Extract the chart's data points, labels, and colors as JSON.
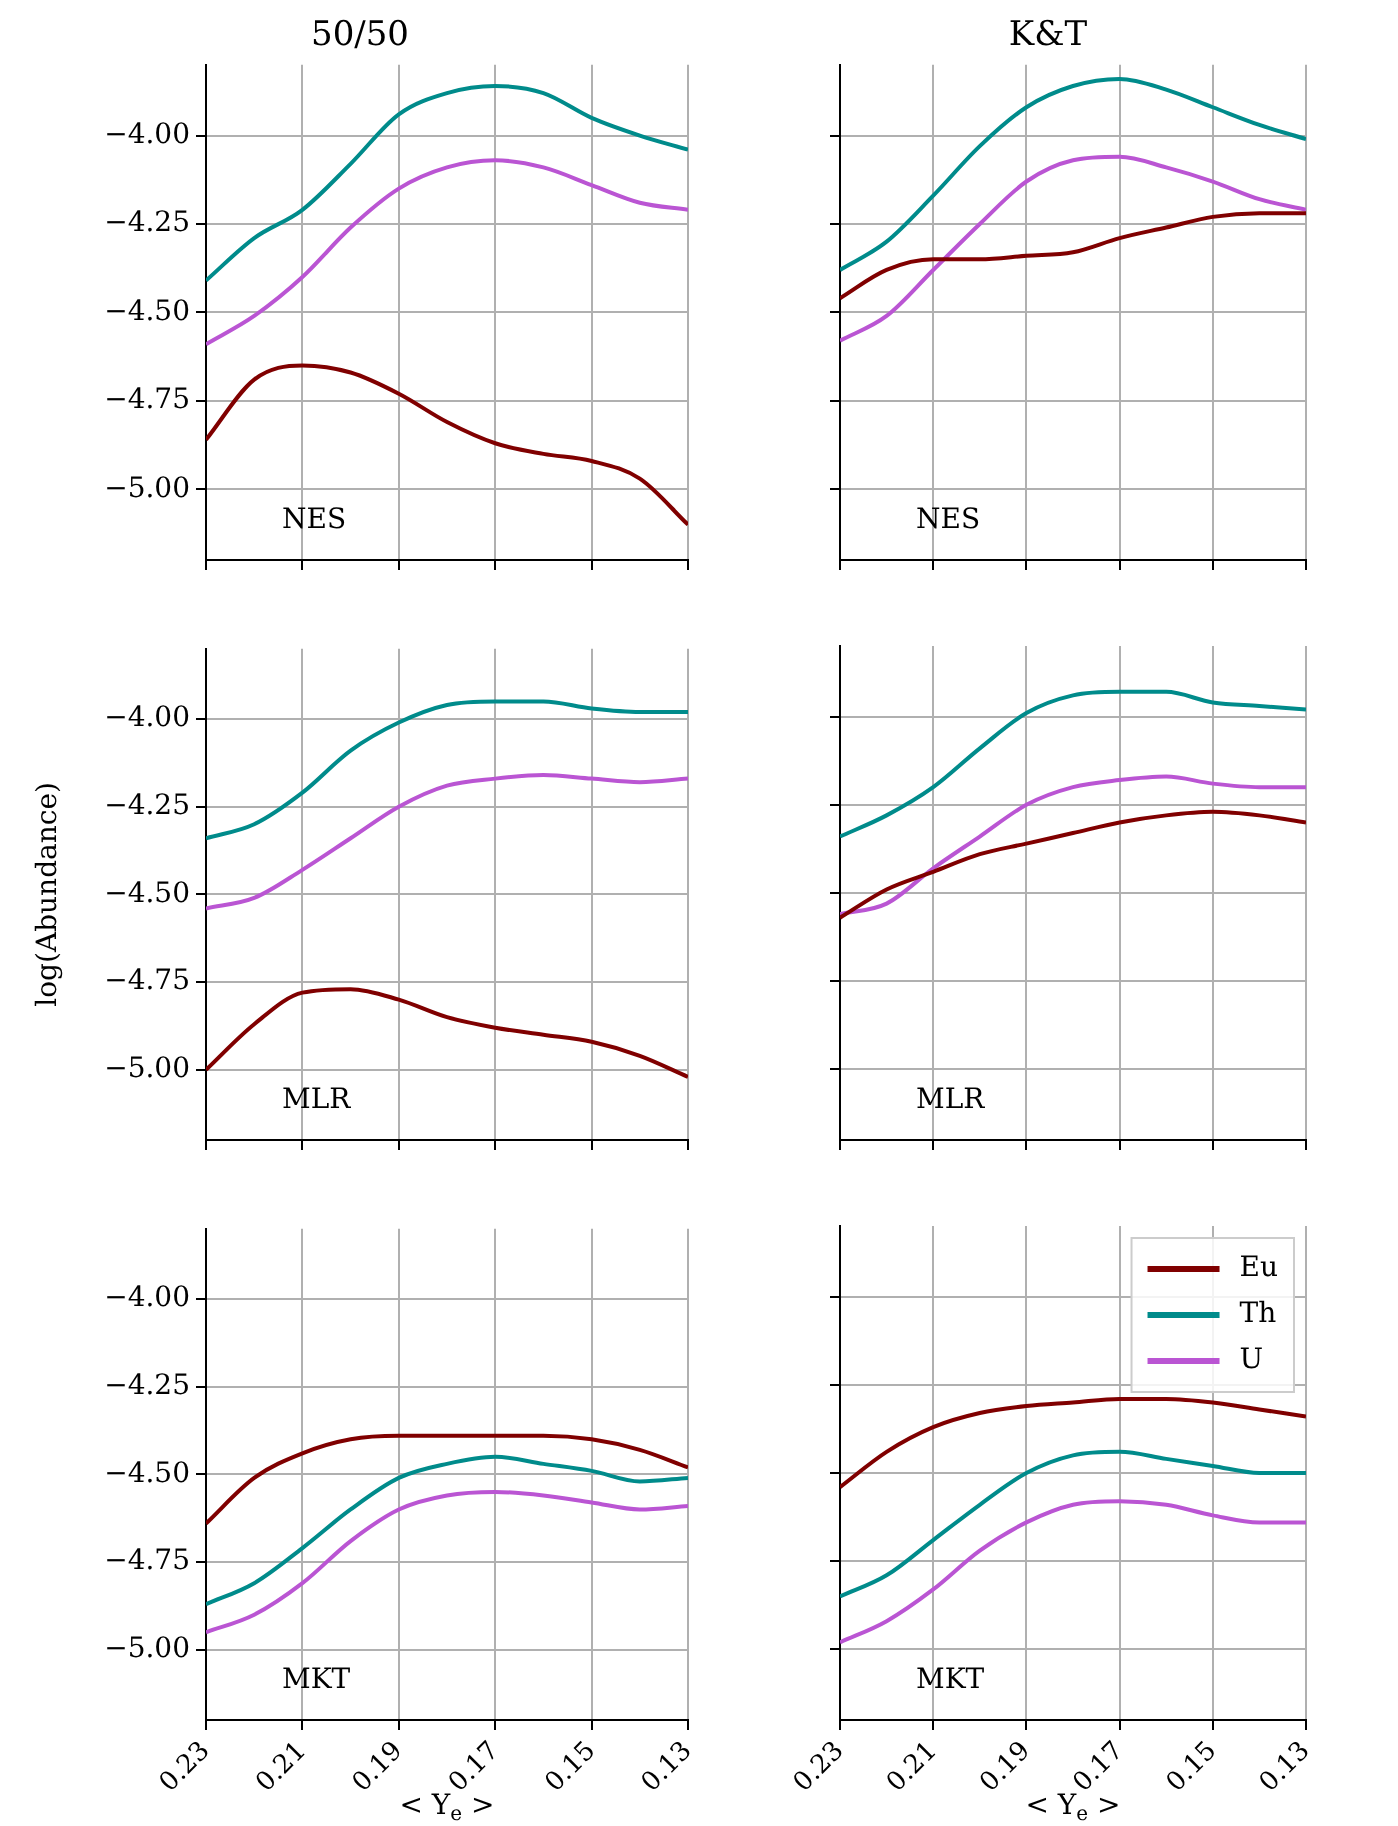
{
  "chart_data": [
    {
      "type": "line",
      "title": "50/50",
      "x": [
        0.23,
        0.22,
        0.21,
        0.2,
        0.19,
        0.18,
        0.17,
        0.16,
        0.15,
        0.14,
        0.13
      ],
      "xlim": [
        0.23,
        0.13
      ],
      "xticks": [
        0.23,
        0.21,
        0.19,
        0.17,
        0.15,
        0.13
      ],
      "ylim": [
        -5.2,
        -3.8
      ],
      "yticks": [
        {
          "value": -5,
          "label": "−5.00"
        },
        {
          "value": -4.75,
          "label": "−4.75"
        },
        {
          "value": -4.5,
          "label": "−4.50"
        },
        {
          "value": -4.25,
          "label": "−4.25"
        },
        {
          "value": -4,
          "label": "−4.00"
        }
      ],
      "grid": true,
      "line_style": "solid",
      "marker": "none",
      "legend": false,
      "tick_labels": "y",
      "annotations": [
        "NES"
      ],
      "series": [
        {
          "color": "#800000",
          "values": [
            -4.86,
            -4.69,
            -4.65,
            -4.67,
            -4.73,
            -4.81,
            -4.87,
            -4.9,
            -4.92,
            -4.97,
            -5.1
          ]
        },
        {
          "color": "#008b8b",
          "values": [
            -4.41,
            -4.29,
            -4.21,
            -4.08,
            -3.94,
            -3.88,
            -3.86,
            -3.88,
            -3.95,
            -4.0,
            -4.04
          ]
        },
        {
          "color": "#ba55d3",
          "values": [
            -4.59,
            -4.51,
            -4.4,
            -4.26,
            -4.15,
            -4.09,
            -4.07,
            -4.09,
            -4.14,
            -4.19,
            -4.21
          ]
        }
      ]
    },
    {
      "type": "line",
      "title": "K&T",
      "x": [
        0.23,
        0.22,
        0.21,
        0.2,
        0.19,
        0.18,
        0.17,
        0.16,
        0.15,
        0.14,
        0.13
      ],
      "xlim": [
        0.23,
        0.13
      ],
      "xticks": [
        0.23,
        0.21,
        0.19,
        0.17,
        0.15,
        0.13
      ],
      "ylim": [
        -5.2,
        -3.8
      ],
      "yticks": [
        {
          "value": -5,
          "label": null
        },
        {
          "value": -4.75,
          "label": null
        },
        {
          "value": -4.5,
          "label": null
        },
        {
          "value": -4.25,
          "label": null
        },
        {
          "value": -4,
          "label": null
        }
      ],
      "grid": true,
      "line_style": "solid",
      "marker": "none",
      "legend": false,
      "tick_labels": false,
      "annotations": [
        "NES"
      ],
      "series": [
        {
          "color": "#800000",
          "values": [
            -4.46,
            -4.38,
            -4.35,
            -4.35,
            -4.34,
            -4.33,
            -4.29,
            -4.26,
            -4.23,
            -4.22,
            -4.22
          ]
        },
        {
          "color": "#008b8b",
          "values": [
            -4.38,
            -4.3,
            -4.17,
            -4.03,
            -3.92,
            -3.86,
            -3.84,
            -3.87,
            -3.92,
            -3.97,
            -4.01
          ]
        },
        {
          "color": "#ba55d3",
          "values": [
            -4.58,
            -4.51,
            -4.38,
            -4.25,
            -4.13,
            -4.07,
            -4.06,
            -4.09,
            -4.13,
            -4.18,
            -4.21
          ]
        }
      ]
    },
    {
      "type": "line",
      "ylabel": "log(Abundance)",
      "x": [
        0.23,
        0.22,
        0.21,
        0.2,
        0.19,
        0.18,
        0.17,
        0.16,
        0.15,
        0.14,
        0.13
      ],
      "xlim": [
        0.23,
        0.13
      ],
      "xticks": [
        0.23,
        0.21,
        0.19,
        0.17,
        0.15,
        0.13
      ],
      "ylim": [
        -5.2,
        -3.8
      ],
      "yticks": [
        {
          "value": -5,
          "label": "−5.00"
        },
        {
          "value": -4.75,
          "label": "−4.75"
        },
        {
          "value": -4.5,
          "label": "−4.50"
        },
        {
          "value": -4.25,
          "label": "−4.25"
        },
        {
          "value": -4,
          "label": "−4.00"
        }
      ],
      "grid": true,
      "line_style": "solid",
      "marker": "none",
      "legend": false,
      "tick_labels": "y",
      "annotations": [
        "MLR"
      ],
      "series": [
        {
          "color": "#800000",
          "values": [
            -5.0,
            -4.87,
            -4.78,
            -4.77,
            -4.8,
            -4.85,
            -4.88,
            -4.9,
            -4.92,
            -4.96,
            -5.02
          ]
        },
        {
          "color": "#008b8b",
          "values": [
            -4.34,
            -4.3,
            -4.21,
            -4.09,
            -4.01,
            -3.96,
            -3.95,
            -3.95,
            -3.97,
            -3.98,
            -3.98
          ]
        },
        {
          "color": "#ba55d3",
          "values": [
            -4.54,
            -4.51,
            -4.43,
            -4.34,
            -4.25,
            -4.19,
            -4.17,
            -4.16,
            -4.17,
            -4.18,
            -4.17
          ]
        }
      ]
    },
    {
      "type": "line",
      "x": [
        0.23,
        0.22,
        0.21,
        0.2,
        0.19,
        0.18,
        0.17,
        0.16,
        0.15,
        0.14,
        0.13
      ],
      "xlim": [
        0.23,
        0.13
      ],
      "xticks": [
        0.23,
        0.21,
        0.19,
        0.17,
        0.15,
        0.13
      ],
      "ylim": [
        -5.2,
        -3.8
      ],
      "yticks": [
        {
          "value": -5,
          "label": null
        },
        {
          "value": -4.75,
          "label": null
        },
        {
          "value": -4.5,
          "label": null
        },
        {
          "value": -4.25,
          "label": null
        },
        {
          "value": -4,
          "label": null
        }
      ],
      "grid": true,
      "line_style": "solid",
      "marker": "none",
      "legend": false,
      "tick_labels": false,
      "annotations": [
        "MLR"
      ],
      "series": [
        {
          "color": "#800000",
          "values": [
            -4.57,
            -4.49,
            -4.44,
            -4.39,
            -4.36,
            -4.33,
            -4.3,
            -4.28,
            -4.27,
            -4.28,
            -4.3
          ]
        },
        {
          "color": "#008b8b",
          "values": [
            -4.34,
            -4.28,
            -4.2,
            -4.09,
            -3.99,
            -3.94,
            -3.93,
            -3.93,
            -3.96,
            -3.97,
            -3.98
          ]
        },
        {
          "color": "#ba55d3",
          "values": [
            -4.56,
            -4.53,
            -4.43,
            -4.34,
            -4.25,
            -4.2,
            -4.18,
            -4.17,
            -4.19,
            -4.2,
            -4.2
          ]
        }
      ]
    },
    {
      "type": "line",
      "xlabel": "< Y$_{e}$ >",
      "x": [
        0.23,
        0.22,
        0.21,
        0.2,
        0.19,
        0.18,
        0.17,
        0.16,
        0.15,
        0.14,
        0.13
      ],
      "xlim": [
        0.23,
        0.13
      ],
      "xticks": [
        0.23,
        0.21,
        0.19,
        0.17,
        0.15,
        0.13
      ],
      "ylim": [
        -5.2,
        -3.8
      ],
      "yticks": [
        {
          "value": -5,
          "label": "−5.00"
        },
        {
          "value": -4.75,
          "label": "−4.75"
        },
        {
          "value": -4.5,
          "label": "−4.50"
        },
        {
          "value": -4.25,
          "label": "−4.25"
        },
        {
          "value": -4,
          "label": "−4.00"
        }
      ],
      "grid": true,
      "line_style": "solid",
      "marker": "none",
      "legend": false,
      "annotations": [
        "MKT"
      ],
      "series": [
        {
          "color": "#800000",
          "values": [
            -4.64,
            -4.51,
            -4.44,
            -4.4,
            -4.39,
            -4.39,
            -4.39,
            -4.39,
            -4.4,
            -4.43,
            -4.48
          ]
        },
        {
          "color": "#008b8b",
          "values": [
            -4.87,
            -4.81,
            -4.71,
            -4.6,
            -4.51,
            -4.47,
            -4.45,
            -4.47,
            -4.49,
            -4.52,
            -4.51
          ]
        },
        {
          "color": "#ba55d3",
          "values": [
            -4.95,
            -4.9,
            -4.81,
            -4.69,
            -4.6,
            -4.56,
            -4.55,
            -4.56,
            -4.58,
            -4.6,
            -4.59
          ]
        }
      ]
    },
    {
      "type": "line",
      "xlabel": "< Y$_{e}$ >",
      "x": [
        0.23,
        0.22,
        0.21,
        0.2,
        0.19,
        0.18,
        0.17,
        0.16,
        0.15,
        0.14,
        0.13
      ],
      "xlim": [
        0.23,
        0.13
      ],
      "xticks": [
        0.23,
        0.21,
        0.19,
        0.17,
        0.15,
        0.13
      ],
      "ylim": [
        -5.2,
        -3.8
      ],
      "yticks": [
        {
          "value": -5,
          "label": null
        },
        {
          "value": -4.75,
          "label": null
        },
        {
          "value": -4.5,
          "label": null
        },
        {
          "value": -4.25,
          "label": null
        },
        {
          "value": -4,
          "label": null
        }
      ],
      "grid": true,
      "line_style": "solid",
      "marker": "none",
      "legend": "top right",
      "tick_labels": "x",
      "annotations": [
        "MKT"
      ],
      "series": [
        {
          "name": "Eu",
          "color": "#800000",
          "values": [
            -4.54,
            -4.44,
            -4.37,
            -4.33,
            -4.31,
            -4.3,
            -4.29,
            -4.29,
            -4.3,
            -4.32,
            -4.34
          ]
        },
        {
          "name": "Th",
          "color": "#008b8b",
          "values": [
            -4.85,
            -4.79,
            -4.69,
            -4.59,
            -4.5,
            -4.45,
            -4.44,
            -4.46,
            -4.48,
            -4.5,
            -4.5
          ]
        },
        {
          "name": "U",
          "color": "#ba55d3",
          "values": [
            -4.98,
            -4.92,
            -4.83,
            -4.72,
            -4.64,
            -4.59,
            -4.58,
            -4.59,
            -4.62,
            -4.64,
            -4.64
          ]
        }
      ]
    }
  ]
}
